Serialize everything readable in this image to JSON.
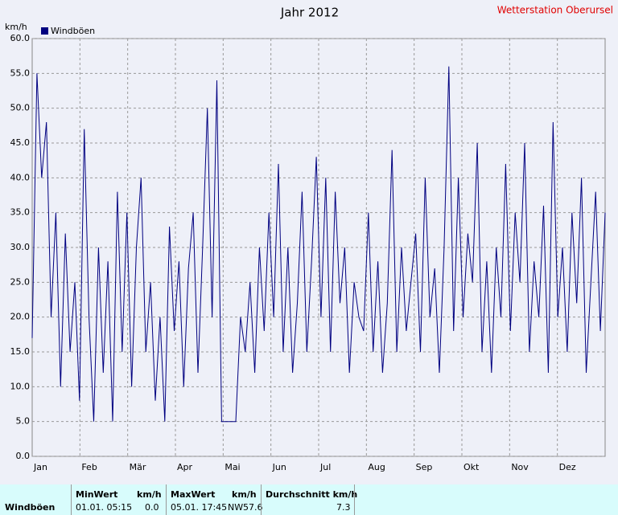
{
  "chart_data": {
    "type": "line",
    "title": "Jahr 2012",
    "station": "Wetterstation Oberursel",
    "y_label": "km/h",
    "months": [
      "Jan",
      "Feb",
      "Mär",
      "Apr",
      "Mai",
      "Jun",
      "Jul",
      "Aug",
      "Sep",
      "Okt",
      "Nov",
      "Dez"
    ],
    "ylim": [
      0,
      60
    ],
    "yticks": [
      {
        "value": 0,
        "label": "0.0"
      },
      {
        "value": 5,
        "label": "5.0"
      },
      {
        "value": 10,
        "label": "10.0"
      },
      {
        "value": 15,
        "label": "15.0"
      },
      {
        "value": 20,
        "label": "20.0"
      },
      {
        "value": 25,
        "label": "25.0"
      },
      {
        "value": 30,
        "label": "30.0"
      },
      {
        "value": 35,
        "label": "35.0"
      },
      {
        "value": 40,
        "label": "40.0"
      },
      {
        "value": 45,
        "label": "45.0"
      },
      {
        "value": 50,
        "label": "50.0"
      },
      {
        "value": 55,
        "label": "55.0"
      },
      {
        "value": 60,
        "label": "60.0"
      }
    ],
    "grid": true,
    "series": [
      {
        "name": "Windböen",
        "color": "#000080",
        "values": [
          17,
          55,
          40,
          48,
          20,
          35,
          10,
          32,
          15,
          25,
          8,
          47,
          20,
          5,
          30,
          12,
          28,
          5,
          38,
          15,
          35,
          10,
          30,
          40,
          15,
          25,
          8,
          20,
          5,
          33,
          18,
          28,
          10,
          27,
          35,
          12,
          30,
          50,
          20,
          54,
          5,
          5,
          5,
          5,
          20,
          15,
          25,
          12,
          30,
          18,
          35,
          20,
          42,
          15,
          30,
          12,
          22,
          38,
          15,
          28,
          43,
          20,
          40,
          15,
          38,
          22,
          30,
          12,
          25,
          20,
          18,
          35,
          15,
          28,
          12,
          22,
          44,
          15,
          30,
          18,
          25,
          32,
          15,
          40,
          20,
          27,
          12,
          30,
          56,
          18,
          40,
          20,
          32,
          25,
          45,
          15,
          28,
          12,
          30,
          20,
          42,
          18,
          35,
          25,
          45,
          15,
          28,
          20,
          36,
          12,
          48,
          20,
          30,
          15,
          35,
          22,
          40,
          12,
          25,
          38,
          18,
          35
        ]
      }
    ]
  },
  "table": {
    "header": [
      "MinWert",
      "km/h",
      "MaxWert",
      "km/h",
      "Durchschnitt km/h"
    ],
    "row": {
      "label": "Windböen",
      "min_time": "01.01.  05:15",
      "min": "0.0",
      "max_time": "05.01.  17:45",
      "max_dir": "NW",
      "max": "57.6",
      "avg": "7.3"
    }
  }
}
